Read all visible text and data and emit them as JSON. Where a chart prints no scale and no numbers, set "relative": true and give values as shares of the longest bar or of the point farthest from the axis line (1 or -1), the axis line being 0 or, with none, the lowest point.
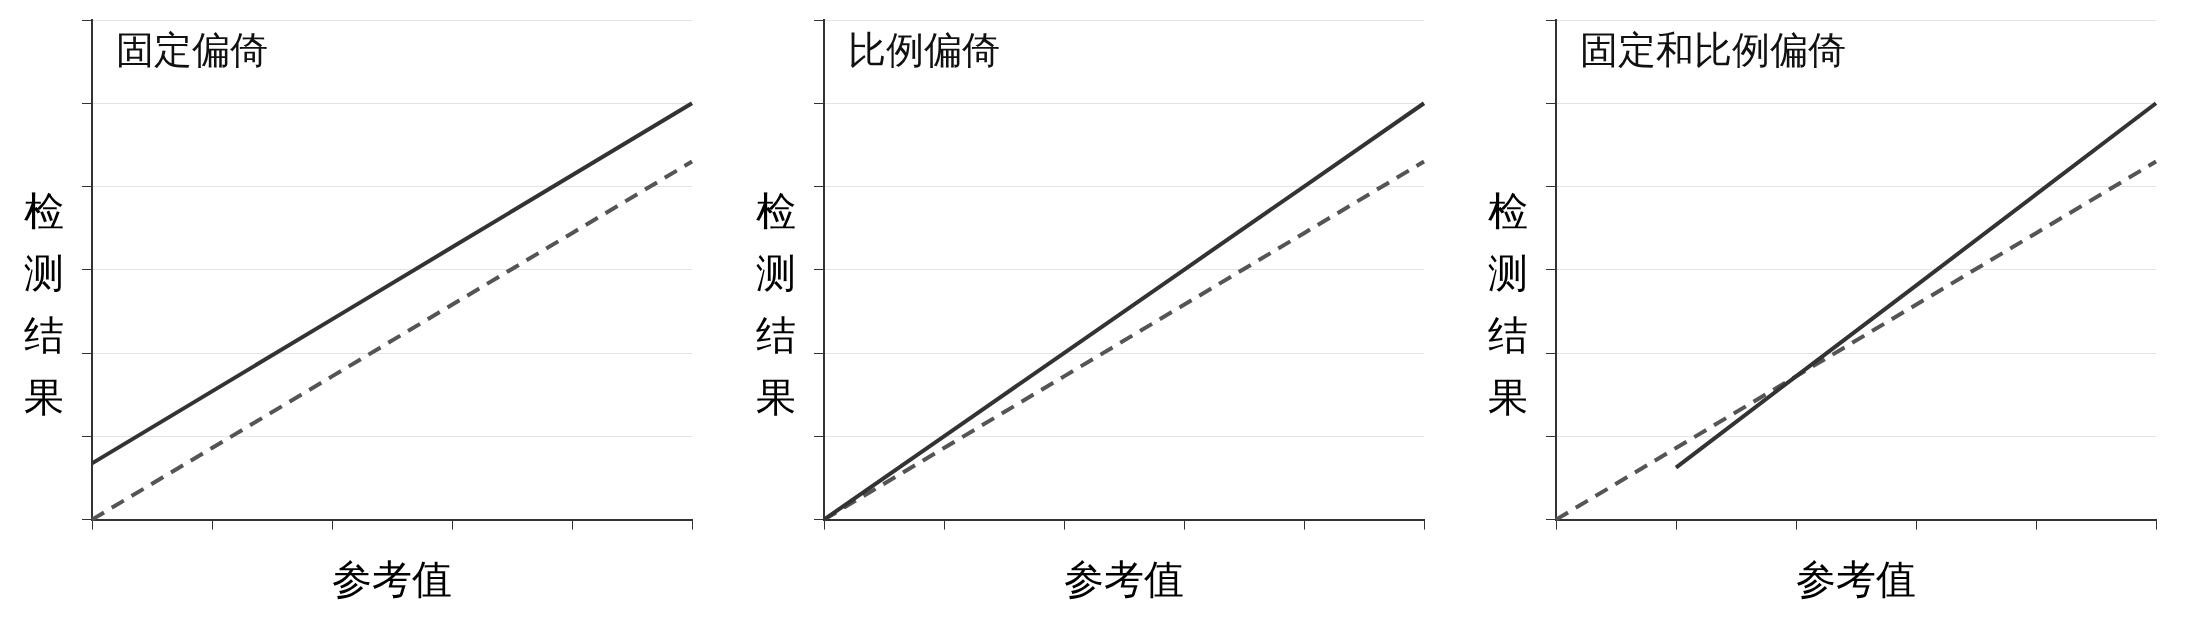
{
  "chart_data": [
    {
      "type": "line",
      "title": "固定偏倚",
      "xlabel": "参考值",
      "ylabel": "检测结果",
      "relative": true,
      "grid": "y",
      "marker": "none",
      "categories": [
        null,
        null,
        null,
        null,
        null,
        null
      ],
      "series": [
        {
          "color": "#333333",
          "line_style": "solid",
          "values": [
            0.135,
            0.308,
            0.481,
            0.654,
            0.827,
            1
          ]
        },
        {
          "color": "#555555",
          "line_style": "dashed",
          "values": [
            0,
            0.172,
            0.344,
            0.516,
            0.688,
            0.86
          ]
        }
      ]
    },
    {
      "type": "line",
      "title": "比例偏倚",
      "xlabel": "参考值",
      "ylabel": "检测结果",
      "relative": true,
      "grid": "y",
      "marker": "none",
      "categories": [
        null,
        null,
        null,
        null,
        null,
        null
      ],
      "series": [
        {
          "color": "#333333",
          "line_style": "solid",
          "values": [
            0,
            0.2,
            0.4,
            0.6,
            0.8,
            1
          ]
        },
        {
          "color": "#555555",
          "line_style": "dashed",
          "values": [
            0,
            0.172,
            0.344,
            0.516,
            0.688,
            0.86
          ]
        }
      ]
    },
    {
      "type": "line",
      "title": "固定和比例偏倚",
      "xlabel": "参考值",
      "ylabel": "检测结果",
      "relative": true,
      "grid": "y",
      "marker": "none",
      "categories": [
        null,
        null,
        null,
        null,
        null,
        null
      ],
      "series": [
        {
          "color": "#333333",
          "line_style": "solid",
          "values": [
            null,
            0.125,
            0.344,
            0.562,
            0.781,
            1
          ]
        },
        {
          "color": "#555555",
          "line_style": "dashed",
          "values": [
            0,
            0.172,
            0.344,
            0.516,
            0.688,
            0.86
          ]
        }
      ]
    }
  ]
}
